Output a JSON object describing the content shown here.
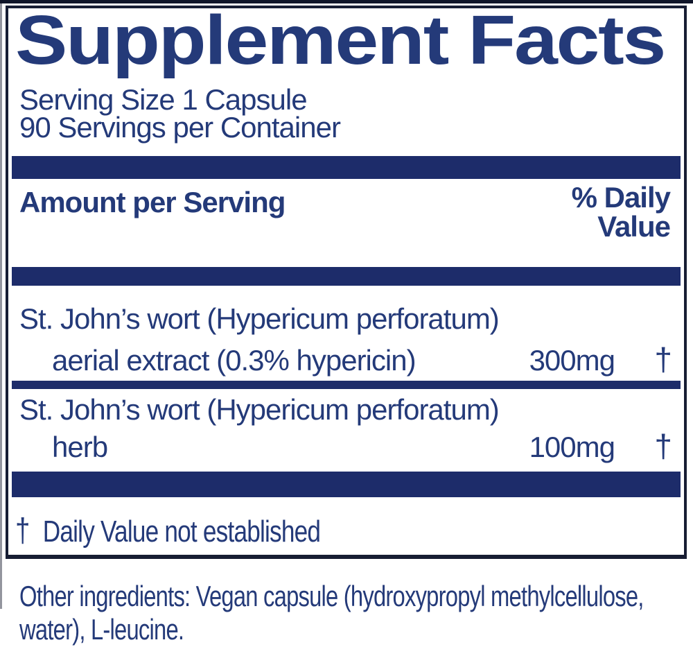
{
  "label": {
    "title": "Supplement Facts",
    "serving_size": "Serving Size 1 Capsule",
    "servings_per_container": "90 Servings per Container",
    "columns": {
      "amount_header": "Amount per Serving",
      "dv_header_line1": "% Daily",
      "dv_header_line2": "Value"
    },
    "ingredients": [
      {
        "name_line1": "St. John’s wort (Hypericum perforatum)",
        "name_line2": "aerial extract (0.3% hypericin)",
        "amount": "300mg",
        "daily_value": "†"
      },
      {
        "name_line1": "St. John’s wort (Hypericum perforatum)",
        "name_line2": "herb",
        "amount": "100mg",
        "daily_value": "†"
      }
    ],
    "footnote": {
      "symbol": "†",
      "text": "Daily Value not established"
    },
    "other_ingredients_lines": [
      "Other ingredients: Vegan capsule (hydroxypropyl methylcellulose,",
      "water), L-leucine."
    ],
    "colors": {
      "navy_bar": "#1d2c6a",
      "navy_text": "#243a79",
      "border": "#171d33",
      "background": "#ffffff"
    }
  }
}
